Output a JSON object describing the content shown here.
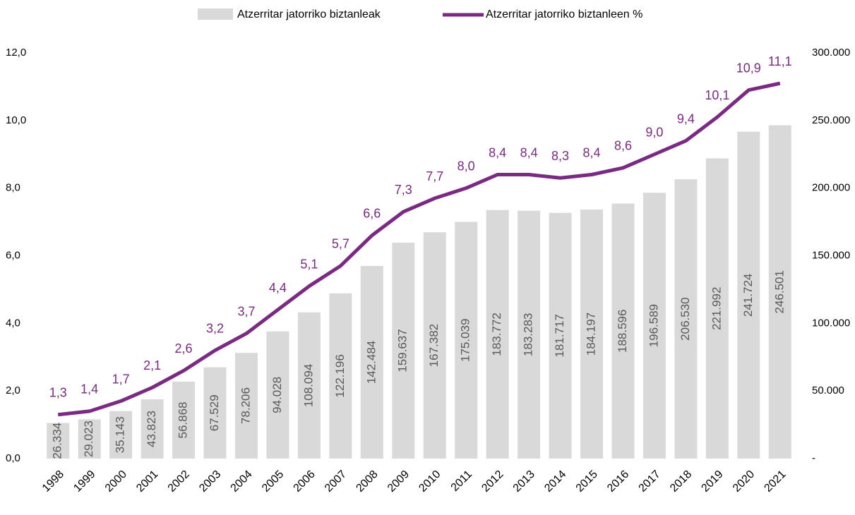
{
  "chart_data": {
    "type": "bar",
    "categories": [
      "1998",
      "1999",
      "2000",
      "2001",
      "2002",
      "2003",
      "2004",
      "2005",
      "2006",
      "2007",
      "2008",
      "2009",
      "2010",
      "2011",
      "2012",
      "2013",
      "2014",
      "2015",
      "2016",
      "2017",
      "2018",
      "2019",
      "2020",
      "2021"
    ],
    "series": [
      {
        "name": "Atzerritar jatorriko biztanleak",
        "type": "bar",
        "axis": "y2",
        "color": "#d9d9d9",
        "values": [
          26334,
          29023,
          35143,
          43823,
          56868,
          67529,
          78206,
          94028,
          108094,
          122196,
          142484,
          159637,
          167382,
          175039,
          183772,
          183283,
          181717,
          184197,
          188596,
          196589,
          206530,
          221992,
          241724,
          246501
        ],
        "value_labels": [
          "26.334",
          "29.023",
          "35.143",
          "43.823",
          "56.868",
          "67.529",
          "78.206",
          "94.028",
          "108.094",
          "122.196",
          "142.484",
          "159.637",
          "167.382",
          "175.039",
          "183.772",
          "183.283",
          "181.717",
          "184.197",
          "188.596",
          "196.589",
          "206.530",
          "221.992",
          "241.724",
          "246.501"
        ]
      },
      {
        "name": "Atzerritar jatorriko biztanleen %",
        "type": "line",
        "axis": "y",
        "color": "#7b2a83",
        "values": [
          1.3,
          1.4,
          1.7,
          2.1,
          2.6,
          3.2,
          3.7,
          4.4,
          5.1,
          5.7,
          6.6,
          7.3,
          7.7,
          8.0,
          8.4,
          8.4,
          8.3,
          8.4,
          8.6,
          9.0,
          9.4,
          10.1,
          10.9,
          11.1
        ],
        "value_labels": [
          "1,3",
          "1,4",
          "1,7",
          "2,1",
          "2,6",
          "3,2",
          "3,7",
          "4,4",
          "5,1",
          "5,7",
          "6,6",
          "7,3",
          "7,7",
          "8,0",
          "8,4",
          "8,4",
          "8,3",
          "8,4",
          "8,6",
          "9,0",
          "9,4",
          "10,1",
          "10,9",
          "11,1"
        ]
      }
    ],
    "ylim": [
      0,
      12
    ],
    "yticks": [
      {
        "value": 0,
        "label": "0,0"
      },
      {
        "value": 2,
        "label": "2,0"
      },
      {
        "value": 4,
        "label": "4,0"
      },
      {
        "value": 6,
        "label": "6,0"
      },
      {
        "value": 8,
        "label": "8,0"
      },
      {
        "value": 10,
        "label": "10,0"
      },
      {
        "value": 12,
        "label": "12,0"
      }
    ],
    "y2lim": [
      0,
      300000
    ],
    "y2ticks": [
      {
        "value": 0,
        "label": "-"
      },
      {
        "value": 50000,
        "label": "50.000"
      },
      {
        "value": 100000,
        "label": "100.000"
      },
      {
        "value": 150000,
        "label": "150.000"
      },
      {
        "value": 200000,
        "label": "200.000"
      },
      {
        "value": 250000,
        "label": "250.000"
      },
      {
        "value": 300000,
        "label": "300.000"
      }
    ],
    "grid": false,
    "legend": "top"
  }
}
